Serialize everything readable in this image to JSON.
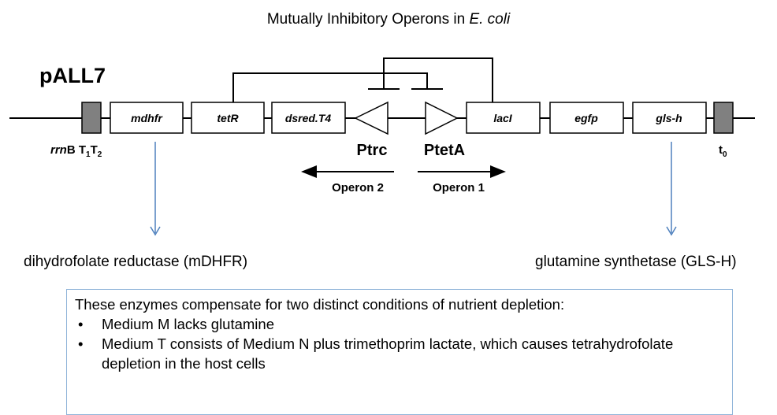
{
  "title": {
    "main": "Mutually Inhibitory Operons in ",
    "organism": "E. coli"
  },
  "plasmid_name": "pALL7",
  "genes": {
    "mdhfr": "mdhfr",
    "tetR": "tetR",
    "dsred": "dsred.T4",
    "lacI": "lacI",
    "egfp": "egfp",
    "glsh": "gls-h"
  },
  "terminators": {
    "rrnb_prefix": "rrn",
    "rrnb_b": "B T",
    "rrnb_sub1": "1",
    "rrnb_t": "T",
    "rrnb_sub2": "2",
    "t0_base": "t",
    "t0_sub": "0"
  },
  "promoters": {
    "ptrc": "Ptrc",
    "ptetA": "PtetA"
  },
  "operons": {
    "left": "Operon 2",
    "right": "Operon 1"
  },
  "products": {
    "left": "dihydrofolate reductase (mDHFR)",
    "right": "glutamine synthetase (GLS-H)"
  },
  "info": {
    "heading": "These enzymes compensate for two distinct conditions of nutrient depletion:",
    "bullets": [
      "Medium M lacks glutamine",
      "Medium T consists of Medium N plus trimethoprim lactate, which causes tetrahydrofolate depletion in the host cells"
    ]
  },
  "colors": {
    "box_fill": "#ffffff",
    "box_stroke": "#000000",
    "terminator_fill": "#808080",
    "arrow_blue": "#4f81bd",
    "info_border": "#8fb4d9"
  }
}
